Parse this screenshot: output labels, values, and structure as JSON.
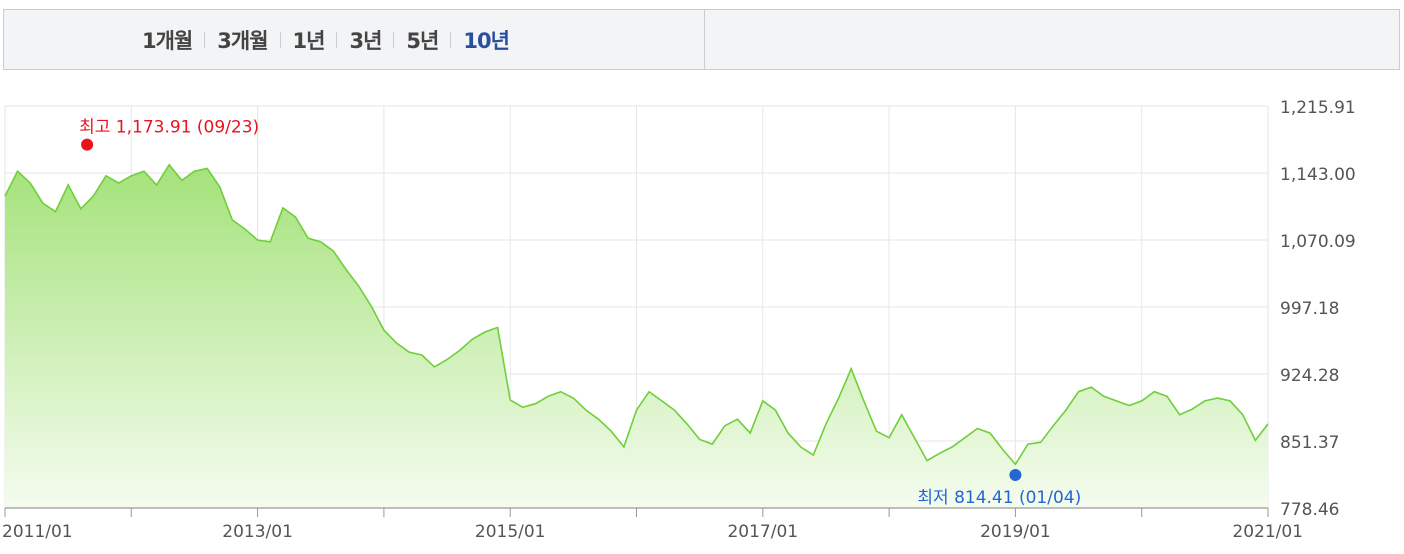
{
  "tabs": [
    {
      "label": "1개월",
      "active": false
    },
    {
      "label": "3개월",
      "active": false
    },
    {
      "label": "1년",
      "active": false
    },
    {
      "label": "3년",
      "active": false
    },
    {
      "label": "5년",
      "active": false
    },
    {
      "label": "10년",
      "active": true
    }
  ],
  "colors": {
    "line": "#6fcf3a",
    "fill_top": "#a4e27a",
    "fill_bottom": "#f5fcef",
    "high": "#e8131d",
    "low": "#2566d6",
    "grid": "#e4e6ea",
    "axis": "#999999"
  },
  "chart_data": {
    "type": "area",
    "title": "",
    "xlabel": "",
    "ylabel": "",
    "x_ticks": [
      "2011/01",
      "2013/01",
      "2015/01",
      "2017/01",
      "2019/01",
      "2021/01"
    ],
    "y_ticks": [
      "1,215.91",
      "1,143.00",
      "1,070.09",
      "997.18",
      "924.28",
      "851.37",
      "778.46"
    ],
    "ylim": [
      778.46,
      1215.91
    ],
    "xlim": [
      2011.0,
      2021.0
    ],
    "high_label": "최고 1,173.91 (09/23)",
    "high": {
      "x": 2011.65,
      "y": 1173.91
    },
    "low_label": "최저 814.41 (01/04)",
    "low": {
      "x": 2019.0,
      "y": 814.41
    },
    "series": [
      {
        "x": [
          2011.0,
          2011.1,
          2011.2,
          2011.3,
          2011.4,
          2011.5,
          2011.6,
          2011.7,
          2011.8,
          2011.9,
          2012.0,
          2012.1,
          2012.2,
          2012.3,
          2012.4,
          2012.5,
          2012.6,
          2012.7,
          2012.8,
          2012.9,
          2013.0,
          2013.1,
          2013.2,
          2013.3,
          2013.4,
          2013.5,
          2013.6,
          2013.7,
          2013.8,
          2013.9,
          2014.0,
          2014.1,
          2014.2,
          2014.3,
          2014.4,
          2014.5,
          2014.6,
          2014.7,
          2014.8,
          2014.9,
          2015.0,
          2015.1,
          2015.2,
          2015.3,
          2015.4,
          2015.5,
          2015.6,
          2015.7,
          2015.8,
          2015.9,
          2016.0,
          2016.1,
          2016.2,
          2016.3,
          2016.4,
          2016.5,
          2016.6,
          2016.7,
          2016.8,
          2016.9,
          2017.0,
          2017.1,
          2017.2,
          2017.3,
          2017.4,
          2017.5,
          2017.6,
          2017.7,
          2017.8,
          2017.9,
          2018.0,
          2018.1,
          2018.2,
          2018.3,
          2018.4,
          2018.5,
          2018.6,
          2018.7,
          2018.8,
          2018.9,
          2019.0,
          2019.1,
          2019.2,
          2019.3,
          2019.4,
          2019.5,
          2019.6,
          2019.7,
          2019.8,
          2019.9,
          2020.0,
          2020.1,
          2020.2,
          2020.3,
          2020.4,
          2020.5,
          2020.6,
          2020.7,
          2020.8,
          2020.9,
          2021.0
        ],
        "values": [
          1118,
          1145,
          1132,
          1110,
          1101,
          1130,
          1104,
          1118,
          1140,
          1132,
          1140,
          1145,
          1130,
          1152,
          1135,
          1145,
          1148,
          1128,
          1092,
          1082,
          1070,
          1068,
          1105,
          1095,
          1072,
          1068,
          1058,
          1038,
          1020,
          998,
          972,
          958,
          948,
          945,
          932,
          940,
          950,
          962,
          970,
          975,
          896,
          888,
          892,
          900,
          905,
          898,
          885,
          875,
          862,
          845,
          885,
          905,
          895,
          885,
          870,
          853,
          848,
          868,
          875,
          860,
          895,
          885,
          860,
          845,
          836,
          870,
          898,
          930,
          895,
          862,
          855,
          880,
          855,
          830,
          838,
          845,
          855,
          865,
          860,
          842,
          826,
          848,
          850,
          868,
          885,
          905,
          910,
          900,
          895,
          890,
          895,
          905,
          900,
          880,
          886,
          895,
          898,
          895,
          880,
          852,
          870
        ]
      }
    ]
  }
}
